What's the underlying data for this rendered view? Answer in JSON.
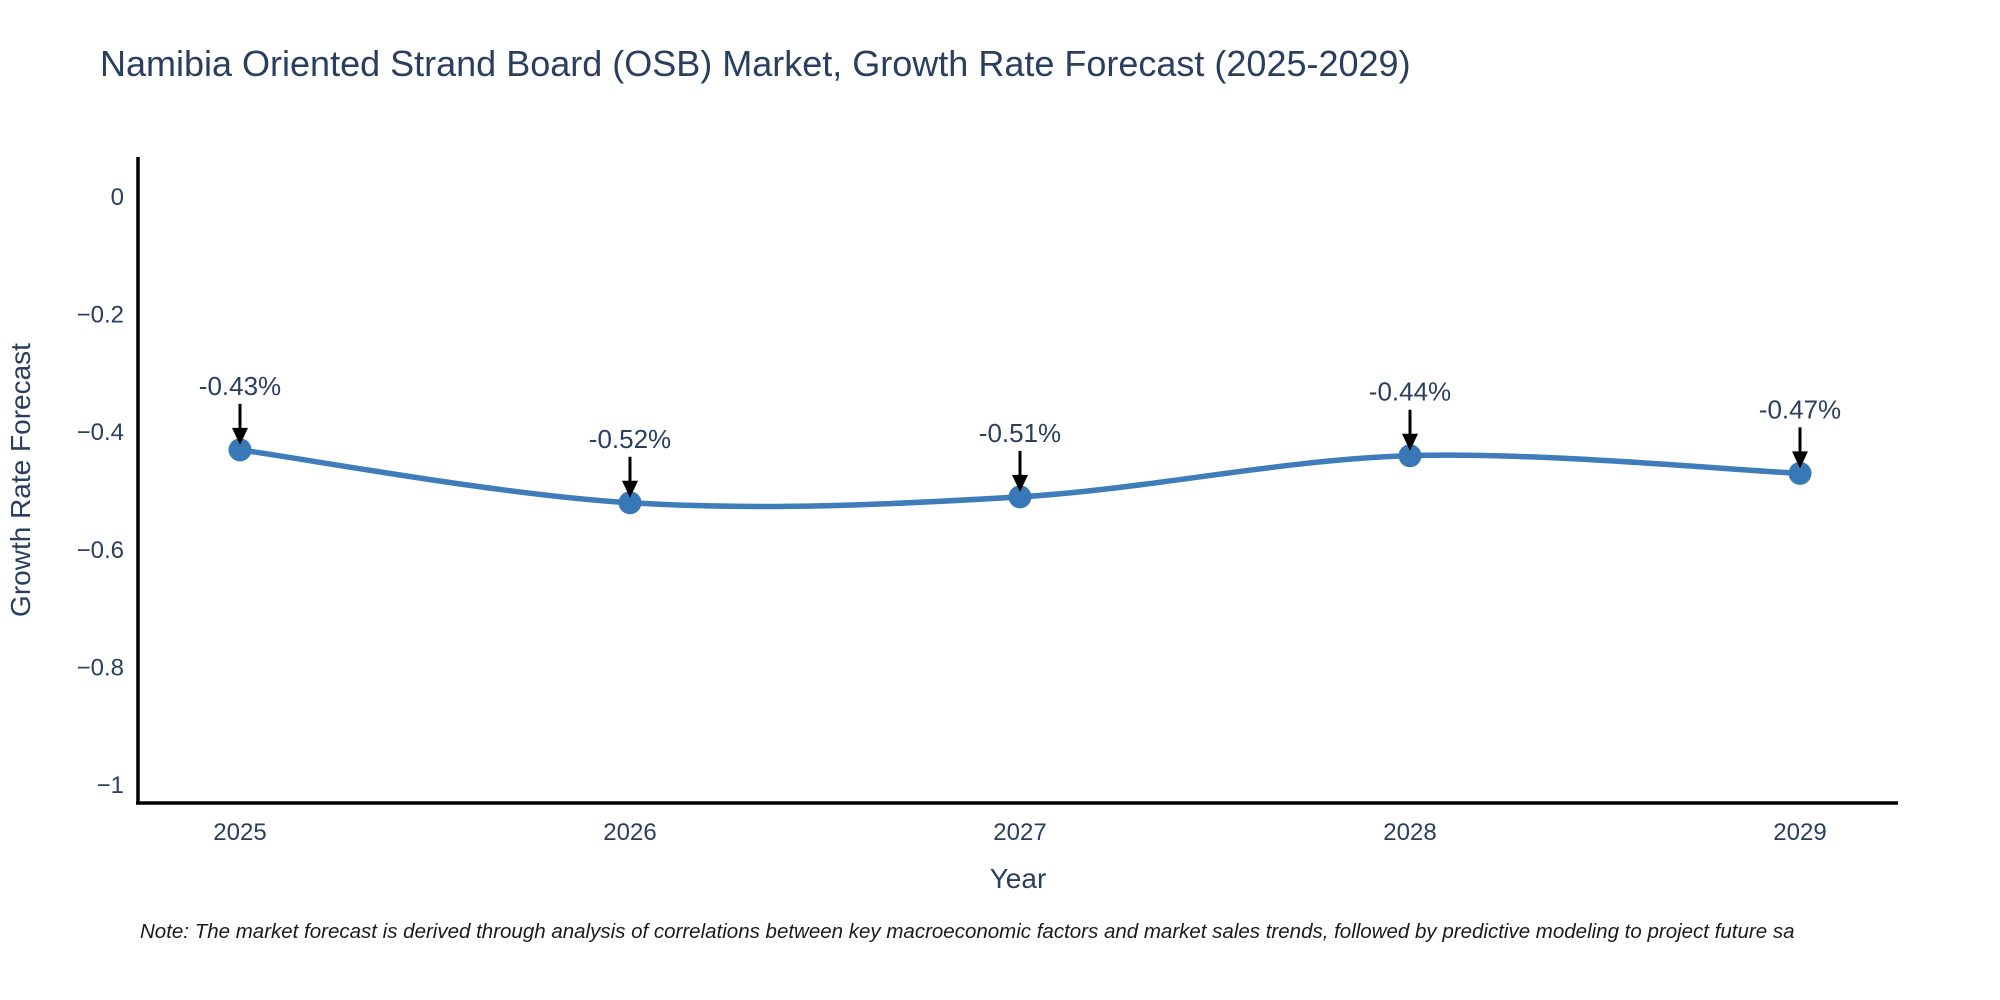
{
  "title": "Namibia Oriented Strand Board (OSB) Market, Growth Rate Forecast (2025-2029)",
  "note": "Note: The market forecast is derived through analysis of correlations between key macroeconomic factors and market sales trends, followed by predictive modeling to project future sa",
  "chart_data": {
    "type": "line",
    "line_shape": "spline",
    "title": "Namibia Oriented Strand Board (OSB) Market, Growth Rate Forecast (2025-2029)",
    "xlabel": "Year",
    "ylabel": "Growth Rate Forecast",
    "x": [
      2025,
      2026,
      2027,
      2028,
      2029
    ],
    "categories": [
      "2025",
      "2026",
      "2027",
      "2028",
      "2029"
    ],
    "series": [
      {
        "name": "Growth Rate Forecast",
        "values": [
          -0.43,
          -0.52,
          -0.51,
          -0.44,
          -0.47
        ]
      }
    ],
    "point_labels": [
      "-0.43%",
      "-0.52%",
      "-0.51%",
      "-0.44%",
      "-0.47%"
    ],
    "ylim": [
      -1,
      0
    ],
    "xlim_approx": [
      2024.74,
      2029.25
    ],
    "ytick_values": [
      0,
      -0.2,
      -0.4,
      -0.6,
      -0.8,
      -1
    ],
    "ytick_labels": [
      "0",
      "−0.2",
      "−0.4",
      "−0.6",
      "−0.8",
      "−1"
    ],
    "xtick_labels": [
      "2025",
      "2026",
      "2027",
      "2028",
      "2029"
    ],
    "grid": false,
    "legend": "none",
    "markers": true,
    "annotations_with_arrows": true,
    "colors": {
      "line": "#3f7cba",
      "marker": "#3878b6",
      "axis": "#000000",
      "text": "#2a3f5f",
      "annotation_arrow": "#000000",
      "note_text": "#1a1a1a",
      "background": "#ffffff"
    }
  }
}
